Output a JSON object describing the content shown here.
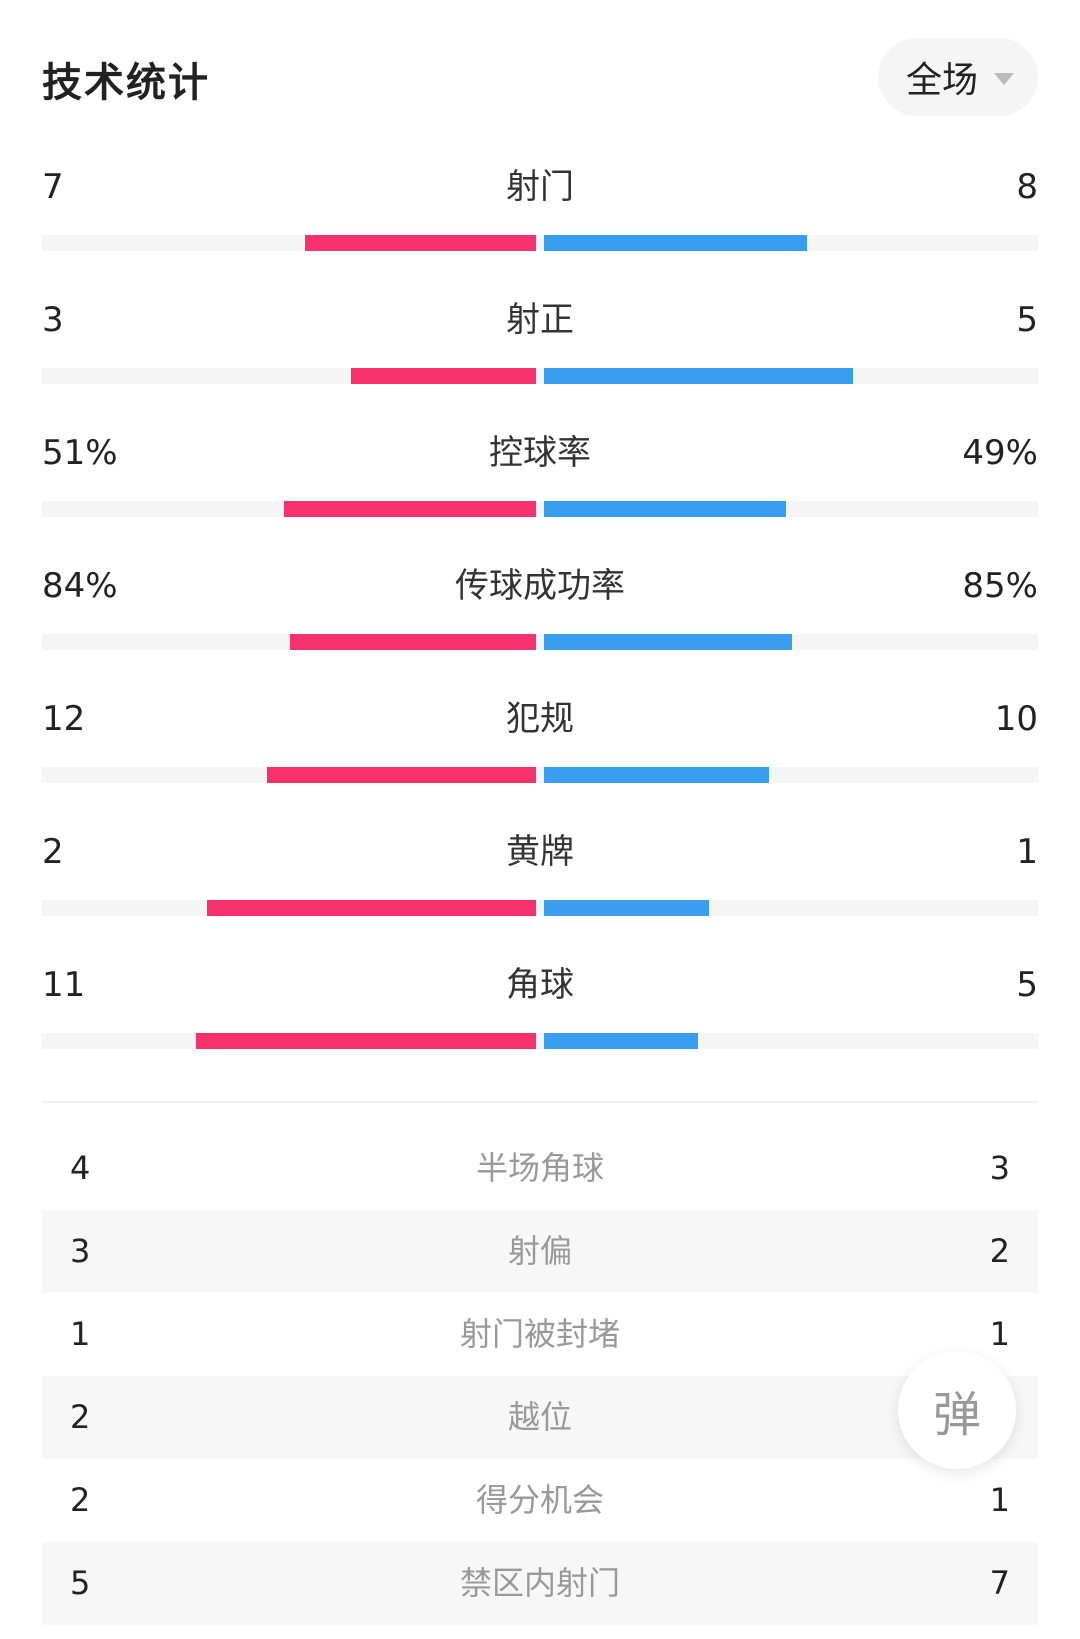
{
  "header": {
    "title": "技术统计",
    "period": "全场",
    "period_icon": "caret-down-icon"
  },
  "colors": {
    "home": "#f5316e",
    "away": "#3a9ef0",
    "track": "#f5f5f5"
  },
  "stats": [
    {
      "name": "射门",
      "home": "7",
      "away": "8",
      "home_value": 7,
      "away_value": 8
    },
    {
      "name": "射正",
      "home": "3",
      "away": "5",
      "home_value": 3,
      "away_value": 5
    },
    {
      "name": "控球率",
      "home": "51%",
      "away": "49%",
      "home_value": 51,
      "away_value": 49
    },
    {
      "name": "传球成功率",
      "home": "84%",
      "away": "85%",
      "home_value": 84,
      "away_value": 85
    },
    {
      "name": "犯规",
      "home": "12",
      "away": "10",
      "home_value": 12,
      "away_value": 10
    },
    {
      "name": "黄牌",
      "home": "2",
      "away": "1",
      "home_value": 2,
      "away_value": 1
    },
    {
      "name": "角球",
      "home": "11",
      "away": "5",
      "home_value": 11,
      "away_value": 5
    }
  ],
  "details": [
    {
      "name": "半场角球",
      "home": "4",
      "away": "3"
    },
    {
      "name": "射偏",
      "home": "3",
      "away": "2"
    },
    {
      "name": "射门被封堵",
      "home": "1",
      "away": "1"
    },
    {
      "name": "越位",
      "home": "2",
      "away": ""
    },
    {
      "name": "得分机会",
      "home": "2",
      "away": "1"
    },
    {
      "name": "禁区内射门",
      "home": "5",
      "away": "7"
    }
  ],
  "danmu": {
    "label": "弹"
  }
}
